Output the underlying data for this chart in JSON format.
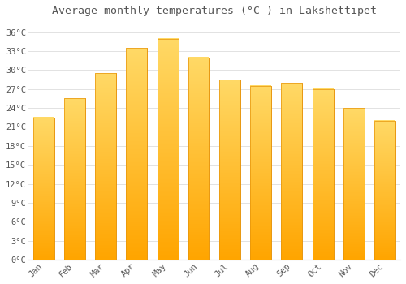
{
  "title": "Average monthly temperatures (°C ) in Lakshettipet",
  "months": [
    "Jan",
    "Feb",
    "Mar",
    "Apr",
    "May",
    "Jun",
    "Jul",
    "Aug",
    "Sep",
    "Oct",
    "Nov",
    "Dec"
  ],
  "values": [
    22.5,
    25.5,
    29.5,
    33.5,
    35.0,
    32.0,
    28.5,
    27.5,
    28.0,
    27.0,
    24.0,
    22.0
  ],
  "bar_color_top": "#FFD966",
  "bar_color_bottom": "#FFA500",
  "bar_edge_color": "#E6940A",
  "background_color": "#FFFFFF",
  "grid_color": "#DDDDDD",
  "ytick_labels": [
    "0°C",
    "3°C",
    "6°C",
    "9°C",
    "12°C",
    "15°C",
    "18°C",
    "21°C",
    "24°C",
    "27°C",
    "30°C",
    "33°C",
    "36°C"
  ],
  "ytick_values": [
    0,
    3,
    6,
    9,
    12,
    15,
    18,
    21,
    24,
    27,
    30,
    33,
    36
  ],
  "ylim": [
    0,
    37.5
  ],
  "title_fontsize": 9.5,
  "tick_fontsize": 7.5,
  "font_color": "#555555"
}
